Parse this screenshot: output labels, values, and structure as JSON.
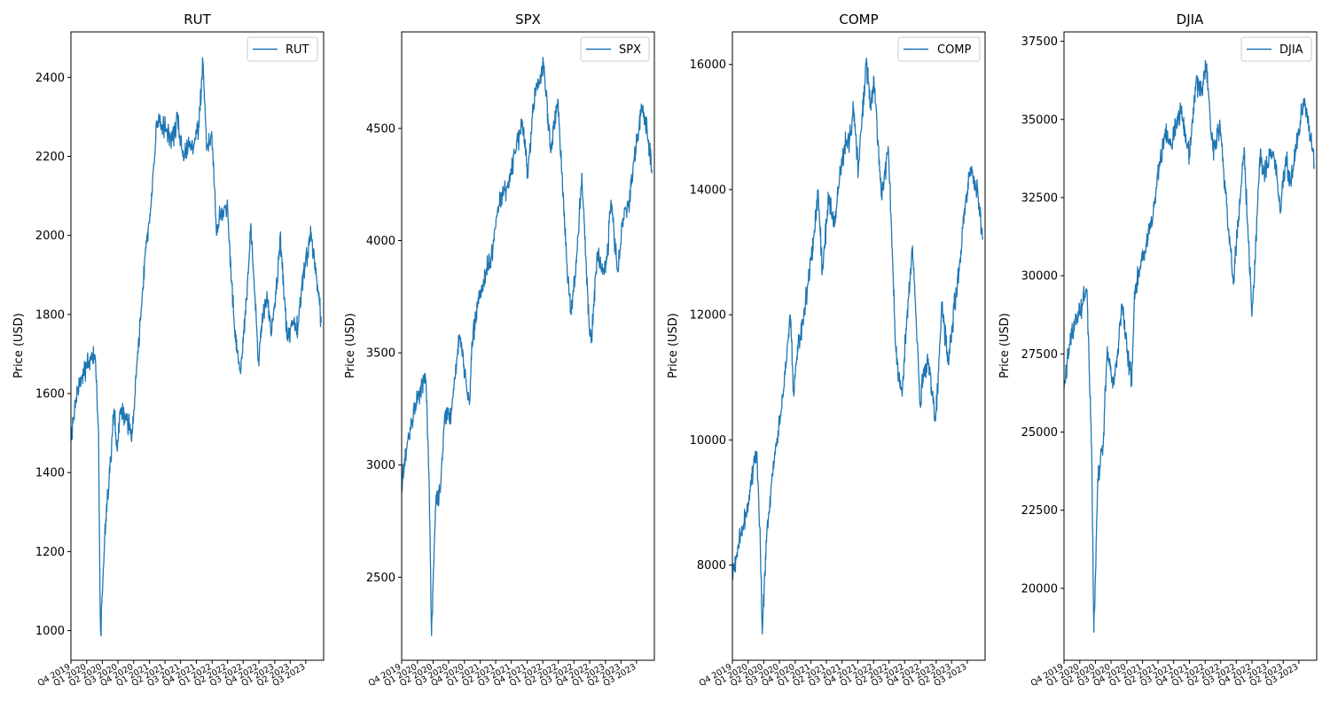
{
  "chart_data": [
    {
      "type": "line",
      "title": "RUT",
      "ylabel": "Price (USD)",
      "ylim": [
        925,
        2515
      ],
      "yticks": [
        1000,
        1200,
        1400,
        1600,
        1800,
        2000,
        2200,
        2400
      ],
      "xticks": [
        "Q4 2019",
        "Q1 2020",
        "Q2 2020",
        "Q3 2020",
        "Q4 2020",
        "Q1 2021",
        "Q2 2021",
        "Q3 2021",
        "Q4 2021",
        "Q1 2022",
        "Q2 2022",
        "Q3 2022",
        "Q4 2022",
        "Q1 2023",
        "Q2 2023",
        "Q3 2023"
      ],
      "legend": "upper right",
      "series": [
        {
          "name": "RUT",
          "color": "#1f77b4",
          "x": [
            "2019-10-01",
            "2019-11-01",
            "2019-12-01",
            "2020-01-01",
            "2020-02-01",
            "2020-02-20",
            "2020-03-10",
            "2020-03-18",
            "2020-03-23",
            "2020-04-15",
            "2020-05-15",
            "2020-06-08",
            "2020-06-26",
            "2020-07-15",
            "2020-08-15",
            "2020-09-23",
            "2020-10-15",
            "2020-11-15",
            "2020-12-15",
            "2021-01-15",
            "2021-02-10",
            "2021-03-15",
            "2021-04-15",
            "2021-05-15",
            "2021-06-15",
            "2021-07-15",
            "2021-08-15",
            "2021-09-15",
            "2021-10-15",
            "2021-11-08",
            "2021-12-01",
            "2021-12-31",
            "2022-01-27",
            "2022-02-15",
            "2022-03-29",
            "2022-05-12",
            "2022-06-16",
            "2022-07-15",
            "2022-08-16",
            "2022-09-30",
            "2022-10-15",
            "2022-11-15",
            "2022-12-15",
            "2023-01-15",
            "2023-02-02",
            "2023-03-15",
            "2023-04-15",
            "2023-05-15",
            "2023-06-15",
            "2023-07-31",
            "2023-08-31",
            "2023-09-29"
          ],
          "y": [
            1480,
            1590,
            1640,
            1670,
            1690,
            1690,
            1500,
            1100,
            990,
            1240,
            1400,
            1560,
            1460,
            1560,
            1540,
            1500,
            1640,
            1820,
            1980,
            2100,
            2290,
            2280,
            2260,
            2240,
            2300,
            2200,
            2230,
            2220,
            2280,
            2440,
            2220,
            2250,
            2000,
            2050,
            2080,
            1760,
            1650,
            1800,
            2020,
            1670,
            1770,
            1840,
            1760,
            1880,
            2000,
            1740,
            1780,
            1760,
            1900,
            2000,
            1900,
            1780
          ]
        }
      ]
    },
    {
      "type": "line",
      "title": "SPX",
      "ylabel": "Price (USD)",
      "ylim": [
        2130,
        4930
      ],
      "yticks": [
        2500,
        3000,
        3500,
        4000,
        4500
      ],
      "xticks": [
        "Q4 2019",
        "Q1 2020",
        "Q2 2020",
        "Q3 2020",
        "Q4 2020",
        "Q1 2021",
        "Q2 2021",
        "Q3 2021",
        "Q4 2021",
        "Q1 2022",
        "Q2 2022",
        "Q3 2022",
        "Q4 2022",
        "Q1 2023",
        "Q2 2023",
        "Q3 2023"
      ],
      "legend": "upper right",
      "series": [
        {
          "name": "SPX",
          "color": "#1f77b4",
          "x": [
            "2019-10-01",
            "2019-11-01",
            "2019-12-01",
            "2020-01-01",
            "2020-02-19",
            "2020-03-10",
            "2020-03-23",
            "2020-04-15",
            "2020-05-15",
            "2020-06-08",
            "2020-07-15",
            "2020-09-02",
            "2020-10-30",
            "2020-11-15",
            "2020-12-15",
            "2021-01-15",
            "2021-02-15",
            "2021-03-15",
            "2021-04-15",
            "2021-05-15",
            "2021-06-15",
            "2021-07-15",
            "2021-08-15",
            "2021-09-02",
            "2021-10-04",
            "2021-11-15",
            "2021-12-15",
            "2022-01-03",
            "2022-02-15",
            "2022-03-29",
            "2022-05-20",
            "2022-06-16",
            "2022-07-15",
            "2022-08-16",
            "2022-09-30",
            "2022-10-12",
            "2022-11-15",
            "2022-12-15",
            "2023-01-15",
            "2023-02-02",
            "2023-03-13",
            "2023-04-15",
            "2023-05-15",
            "2023-06-15",
            "2023-07-31",
            "2023-08-31",
            "2023-09-29"
          ],
          "y": [
            2910,
            3080,
            3200,
            3300,
            3380,
            2880,
            2240,
            2800,
            2900,
            3230,
            3220,
            3580,
            3270,
            3550,
            3700,
            3800,
            3900,
            3950,
            4150,
            4200,
            4250,
            4380,
            4450,
            4530,
            4300,
            4680,
            4700,
            4800,
            4400,
            4630,
            3900,
            3670,
            3900,
            4300,
            3590,
            3580,
            3950,
            3850,
            3950,
            4180,
            3860,
            4100,
            4150,
            4350,
            4590,
            4500,
            4300
          ]
        }
      ]
    },
    {
      "type": "line",
      "title": "COMP",
      "ylabel": "Price (USD)",
      "ylim": [
        6480,
        16520
      ],
      "yticks": [
        8000,
        10000,
        12000,
        14000,
        16000
      ],
      "xticks": [
        "Q4 2019",
        "Q1 2020",
        "Q2 2020",
        "Q3 2020",
        "Q4 2020",
        "Q1 2021",
        "Q2 2021",
        "Q3 2021",
        "Q4 2021",
        "Q1 2022",
        "Q2 2022",
        "Q3 2022",
        "Q4 2022",
        "Q1 2023",
        "Q2 2023",
        "Q3 2023"
      ],
      "legend": "upper right",
      "series": [
        {
          "name": "COMP",
          "color": "#1f77b4",
          "x": [
            "2019-10-01",
            "2019-11-01",
            "2019-12-01",
            "2020-01-01",
            "2020-02-19",
            "2020-03-10",
            "2020-03-23",
            "2020-04-15",
            "2020-05-15",
            "2020-06-15",
            "2020-07-15",
            "2020-09-02",
            "2020-09-23",
            "2020-10-15",
            "2020-11-15",
            "2020-12-15",
            "2021-01-15",
            "2021-02-12",
            "2021-03-08",
            "2021-04-15",
            "2021-05-15",
            "2021-06-15",
            "2021-07-15",
            "2021-08-15",
            "2021-09-07",
            "2021-10-04",
            "2021-11-19",
            "2021-12-15",
            "2022-01-03",
            "2022-02-15",
            "2022-03-29",
            "2022-05-12",
            "2022-06-16",
            "2022-07-15",
            "2022-08-16",
            "2022-09-30",
            "2022-10-15",
            "2022-11-15",
            "2022-12-28",
            "2023-01-15",
            "2023-02-02",
            "2023-03-13",
            "2023-04-15",
            "2023-05-15",
            "2023-06-15",
            "2023-07-19",
            "2023-08-31",
            "2023-09-29"
          ],
          "y": [
            7800,
            8300,
            8600,
            9000,
            9800,
            8600,
            6900,
            8400,
            9300,
            9900,
            10500,
            12000,
            10700,
            11500,
            11900,
            12500,
            13200,
            14000,
            12700,
            13900,
            13400,
            14100,
            14700,
            14800,
            15300,
            14300,
            16050,
            15300,
            15800,
            13900,
            14600,
            11400,
            10700,
            12000,
            13100,
            10600,
            11000,
            11300,
            10300,
            11100,
            12200,
            11200,
            12100,
            12700,
            13700,
            14350,
            14000,
            13200
          ]
        }
      ]
    },
    {
      "type": "line",
      "title": "DJIA",
      "ylabel": "Price (USD)",
      "ylim": [
        17700,
        37800
      ],
      "yticks": [
        20000,
        22500,
        25000,
        27500,
        30000,
        32500,
        35000,
        37500
      ],
      "xticks": [
        "Q4 2019",
        "Q1 2020",
        "Q2 2020",
        "Q3 2020",
        "Q4 2020",
        "Q1 2021",
        "Q2 2021",
        "Q3 2021",
        "Q4 2021",
        "Q1 2022",
        "Q2 2022",
        "Q3 2022",
        "Q4 2022",
        "Q1 2023",
        "Q2 2023",
        "Q3 2023"
      ],
      "legend": "upper right",
      "series": [
        {
          "name": "DJIA",
          "color": "#1f77b4",
          "x": [
            "2019-10-01",
            "2019-11-01",
            "2019-12-01",
            "2020-01-01",
            "2020-02-12",
            "2020-03-10",
            "2020-03-23",
            "2020-04-15",
            "2020-05-15",
            "2020-06-08",
            "2020-07-15",
            "2020-08-15",
            "2020-09-02",
            "2020-10-30",
            "2020-11-15",
            "2020-12-15",
            "2021-01-15",
            "2021-02-15",
            "2021-03-15",
            "2021-04-15",
            "2021-05-15",
            "2021-06-15",
            "2021-07-15",
            "2021-08-15",
            "2021-09-30",
            "2021-11-08",
            "2021-12-15",
            "2022-01-04",
            "2022-02-15",
            "2022-03-29",
            "2022-05-20",
            "2022-06-16",
            "2022-07-15",
            "2022-08-16",
            "2022-09-30",
            "2022-10-15",
            "2022-11-15",
            "2022-12-15",
            "2023-01-15",
            "2023-02-15",
            "2023-03-15",
            "2023-04-15",
            "2023-05-15",
            "2023-06-15",
            "2023-07-31",
            "2023-08-31",
            "2023-09-29"
          ],
          "y": [
            26400,
            27800,
            28400,
            28900,
            29550,
            24500,
            18600,
            23500,
            24500,
            27500,
            26500,
            27900,
            29100,
            26500,
            29500,
            30200,
            30800,
            31500,
            32500,
            33800,
            34500,
            34200,
            34800,
            35400,
            33800,
            36200,
            35800,
            36800,
            34000,
            34800,
            31300,
            29900,
            31900,
            34100,
            28700,
            30000,
            33800,
            33200,
            34000,
            33700,
            32000,
            33800,
            33000,
            34100,
            35600,
            34800,
            33500
          ]
        }
      ]
    }
  ]
}
